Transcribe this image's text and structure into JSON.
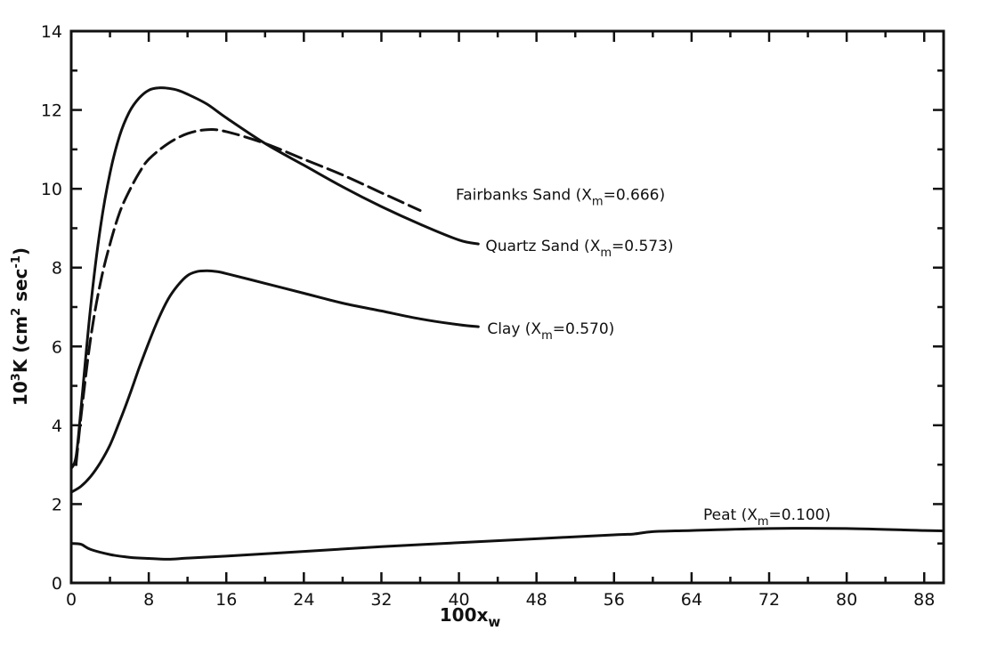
{
  "chart_data": {
    "type": "line",
    "title": "",
    "xlabel": "100x",
    "xlabel_sub": "w",
    "ylabel": "10",
    "ylabel_sup": "3",
    "ylabel_rest": "K (cm",
    "ylabel_sup2": "2",
    "ylabel_rest2": " sec",
    "ylabel_sup3": "-1",
    "ylabel_close": ")",
    "xlim": [
      0,
      90
    ],
    "ylim": [
      0,
      14
    ],
    "xticks": [
      0,
      8,
      16,
      24,
      32,
      40,
      48,
      56,
      64,
      72,
      80,
      88
    ],
    "yticks": [
      0,
      2,
      4,
      6,
      8,
      10,
      12,
      14
    ],
    "series": [
      {
        "name": "Fairbanks Sand",
        "label_prefix": "Fairbanks Sand (X",
        "label_sub": "m",
        "label_suffix": "=0.666)",
        "dashed": true,
        "x": [
          0.5,
          1,
          2,
          3,
          4,
          5,
          6,
          7,
          8,
          10,
          12,
          14,
          16,
          20,
          24,
          28,
          32,
          36
        ],
        "y": [
          3.0,
          4.2,
          6.2,
          7.6,
          8.6,
          9.4,
          9.95,
          10.4,
          10.75,
          11.15,
          11.4,
          11.5,
          11.45,
          11.15,
          10.75,
          10.35,
          9.9,
          9.45
        ]
      },
      {
        "name": "Quartz Sand",
        "label_prefix": "Quartz Sand (X",
        "label_sub": "m",
        "label_suffix": "=0.573)",
        "dashed": false,
        "x": [
          0,
          0.5,
          1,
          2,
          3,
          4,
          5,
          6,
          7,
          8,
          9,
          10,
          11,
          12,
          14,
          16,
          20,
          24,
          28,
          32,
          36,
          40,
          42
        ],
        "y": [
          2.9,
          3.2,
          4.4,
          7.0,
          9.0,
          10.4,
          11.35,
          11.95,
          12.3,
          12.5,
          12.56,
          12.55,
          12.5,
          12.4,
          12.15,
          11.8,
          11.15,
          10.6,
          10.05,
          9.55,
          9.1,
          8.7,
          8.6
        ]
      },
      {
        "name": "Clay",
        "label_prefix": "Clay (X",
        "label_sub": "m",
        "label_suffix": "=0.570)",
        "dashed": false,
        "x": [
          0,
          1,
          2,
          3,
          4,
          5,
          6,
          7,
          8,
          9,
          10,
          11,
          12,
          13,
          14,
          15,
          16,
          20,
          24,
          28,
          32,
          36,
          40,
          42
        ],
        "y": [
          2.3,
          2.45,
          2.7,
          3.05,
          3.5,
          4.1,
          4.75,
          5.45,
          6.1,
          6.7,
          7.2,
          7.55,
          7.8,
          7.9,
          7.92,
          7.9,
          7.85,
          7.6,
          7.35,
          7.1,
          6.9,
          6.7,
          6.55,
          6.5
        ]
      },
      {
        "name": "Peat",
        "label_prefix": "Peat (X",
        "label_sub": "m",
        "label_suffix": "=0.100)",
        "dashed": false,
        "x": [
          0,
          1,
          2,
          4,
          6,
          8,
          10,
          12,
          16,
          24,
          32,
          40,
          48,
          56,
          58,
          60,
          64,
          72,
          80,
          88,
          90
        ],
        "y": [
          1.0,
          0.98,
          0.85,
          0.72,
          0.65,
          0.62,
          0.6,
          0.63,
          0.68,
          0.8,
          0.92,
          1.02,
          1.12,
          1.22,
          1.24,
          1.3,
          1.33,
          1.38,
          1.38,
          1.33,
          1.32
        ]
      }
    ]
  }
}
